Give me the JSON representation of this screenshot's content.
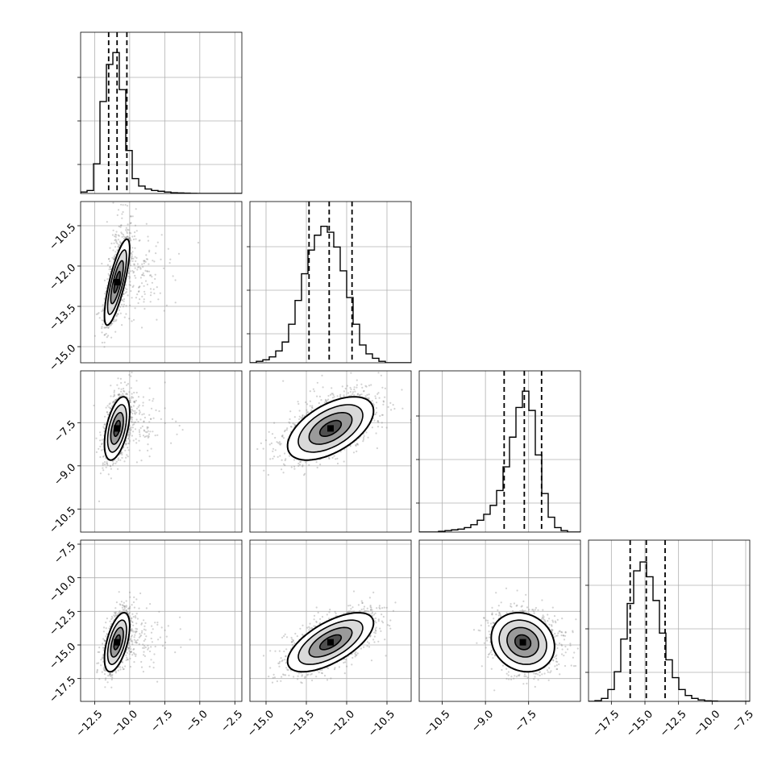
{
  "chart_data": {
    "type": "corner",
    "grid": true,
    "colors": {
      "ink": "#000000",
      "grid": "#b0b0b0",
      "scatter": "#7f7f7f",
      "background": "#ffffff"
    },
    "parameters": [
      {
        "xlim": [
          -13.5,
          -2
        ],
        "xticks": [
          -12.5,
          -10.0,
          -7.5,
          -5.0,
          -2.5
        ],
        "xtick_labels": [
          "−12.5",
          "−10.0",
          "−7.5",
          "−5.0",
          "−2.5"
        ]
      },
      {
        "xlim": [
          -15.6,
          -9.6
        ],
        "xticks": [
          -15.0,
          -13.5,
          -12.0,
          -10.5
        ],
        "xtick_labels": [
          "−15.0",
          "−13.5",
          "−12.0",
          "−10.5"
        ]
      },
      {
        "xlim": [
          -11.3,
          -5.7
        ],
        "xticks": [
          -10.5,
          -9.0,
          -7.5
        ],
        "xtick_labels": [
          "−10.5",
          "−9.0",
          "−7.5"
        ]
      },
      {
        "xlim": [
          -19.2,
          -7.2
        ],
        "xticks": [
          -17.5,
          -15.0,
          -12.5,
          -10.0,
          -7.5
        ],
        "xtick_labels": [
          "−17.5",
          "−15.0",
          "−12.5",
          "−10.0",
          "−7.5"
        ]
      }
    ],
    "row_ylims": [
      null,
      [
        -15.6,
        -9.6
      ],
      [
        -11.3,
        -5.7
      ],
      [
        -19.2,
        -7.2
      ]
    ],
    "row_yticks": [
      null,
      {
        "values": [
          -10.5,
          -12.0,
          -13.5,
          -15.0
        ],
        "labels": [
          "−10.5",
          "−12.0",
          "−13.5",
          "−15.0"
        ]
      },
      {
        "values": [
          -7.5,
          -9.0,
          -10.5
        ],
        "labels": [
          "−7.5",
          "−9.0",
          "−10.5"
        ]
      },
      {
        "values": [
          -7.5,
          -10.0,
          -12.5,
          -15.0,
          -17.5
        ],
        "labels": [
          "−7.5",
          "−10.0",
          "−12.5",
          "−15.0",
          "−17.5"
        ]
      }
    ],
    "histograms": [
      {
        "param": 0,
        "bins": [
          -13.5,
          -13.04,
          -12.58,
          -12.12,
          -11.66,
          -11.2,
          -10.74,
          -10.28,
          -9.82,
          -9.36,
          -8.9,
          -8.44,
          -7.98,
          -7.52,
          -7.06,
          -6.6,
          -6.14,
          -5.68,
          -5.22,
          -4.76,
          -4.3,
          -3.84,
          -3.38,
          -2.92,
          -2.46,
          -2.0
        ],
        "counts": [
          0.01,
          0.02,
          0.2,
          0.62,
          0.87,
          0.95,
          0.7,
          0.29,
          0.1,
          0.05,
          0.03,
          0.02,
          0.015,
          0.01,
          0.005,
          0.004,
          0.002,
          0.001,
          0,
          0,
          0,
          0,
          0,
          0,
          0
        ],
        "quantiles": [
          -11.5,
          -10.9,
          -10.2
        ]
      },
      {
        "param": 1,
        "bins": [
          -15.6,
          -15.36,
          -15.12,
          -14.88,
          -14.64,
          -14.4,
          -14.16,
          -13.92,
          -13.68,
          -13.44,
          -13.2,
          -12.96,
          -12.72,
          -12.48,
          -12.24,
          -12.0,
          -11.76,
          -11.52,
          -11.28,
          -11.04,
          -10.8,
          -10.56,
          -10.32,
          -10.08,
          -9.84,
          -9.6
        ],
        "counts": [
          0,
          0.01,
          0.02,
          0.04,
          0.08,
          0.14,
          0.26,
          0.42,
          0.6,
          0.76,
          0.86,
          0.92,
          0.88,
          0.78,
          0.62,
          0.44,
          0.26,
          0.12,
          0.06,
          0.03,
          0.01,
          0,
          0,
          0,
          0
        ],
        "quantiles": [
          -13.4,
          -12.65,
          -11.8
        ]
      },
      {
        "param": 2,
        "bins": [
          -11.3,
          -11.076,
          -10.852,
          -10.628,
          -10.404,
          -10.18,
          -9.956,
          -9.732,
          -9.508,
          -9.284,
          -9.06,
          -8.836,
          -8.612,
          -8.388,
          -8.164,
          -7.94,
          -7.716,
          -7.492,
          -7.268,
          -7.044,
          -6.82,
          -6.596,
          -6.372,
          -6.148,
          -5.924,
          -5.7
        ],
        "counts": [
          0,
          0,
          0,
          0.005,
          0.01,
          0.015,
          0.02,
          0.03,
          0.05,
          0.08,
          0.12,
          0.18,
          0.28,
          0.44,
          0.64,
          0.84,
          0.95,
          0.82,
          0.52,
          0.26,
          0.1,
          0.03,
          0.01,
          0,
          0
        ],
        "quantiles": [
          -8.35,
          -7.65,
          -7.05
        ]
      },
      {
        "param": 3,
        "bins": [
          -19.2,
          -18.72,
          -18.24,
          -17.76,
          -17.28,
          -16.8,
          -16.32,
          -15.84,
          -15.36,
          -14.88,
          -14.4,
          -13.92,
          -13.44,
          -12.96,
          -12.48,
          -12.0,
          -11.52,
          -11.04,
          -10.56,
          -10.08,
          -9.6,
          -9.12,
          -8.64,
          -7.68,
          -7.2
        ],
        "counts": [
          0,
          0.005,
          0.02,
          0.08,
          0.2,
          0.42,
          0.66,
          0.88,
          0.94,
          0.84,
          0.68,
          0.46,
          0.28,
          0.16,
          0.08,
          0.04,
          0.02,
          0.01,
          0.004,
          0.002,
          0,
          0,
          0,
          0
        ],
        "quantiles": [
          -16.1,
          -14.9,
          -13.5
        ]
      }
    ],
    "pairs": [
      {
        "row": 1,
        "col": 0,
        "mean": [
          -10.9,
          -12.6
        ],
        "sd": [
          0.45,
          0.8
        ],
        "rho": 0.78,
        "tail": [
          1.8,
          0.6
        ]
      },
      {
        "row": 2,
        "col": 0,
        "mean": [
          -10.9,
          -7.7
        ],
        "sd": [
          0.45,
          0.55
        ],
        "rho": 0.5,
        "tail": [
          1.8,
          0.3
        ]
      },
      {
        "row": 2,
        "col": 1,
        "mean": [
          -12.6,
          -7.7
        ],
        "sd": [
          0.8,
          0.55
        ],
        "rho": 0.55,
        "tail": [
          0.3,
          0.6
        ]
      },
      {
        "row": 3,
        "col": 0,
        "mean": [
          -10.9,
          -14.8
        ],
        "sd": [
          0.45,
          1.1
        ],
        "rho": 0.55,
        "tail": [
          1.8,
          0.3
        ]
      },
      {
        "row": 3,
        "col": 1,
        "mean": [
          -12.6,
          -14.8
        ],
        "sd": [
          0.8,
          1.1
        ],
        "rho": 0.65,
        "tail": [
          0.3,
          0.3
        ]
      },
      {
        "row": 3,
        "col": 2,
        "mean": [
          -7.7,
          -14.8
        ],
        "sd": [
          0.55,
          1.1
        ],
        "rho": -0.15,
        "tail": [
          0.6,
          0.3
        ]
      }
    ]
  }
}
